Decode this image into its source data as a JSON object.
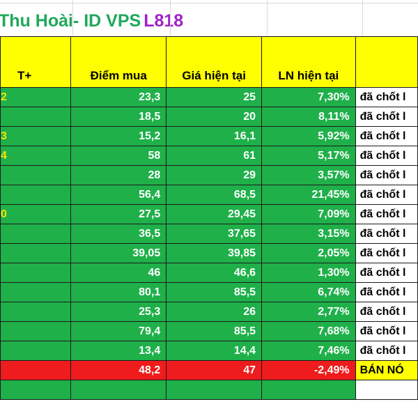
{
  "title": {
    "name": "Thu Hoài- ID VPS",
    "code": "L818"
  },
  "table": {
    "headers": [
      "T+",
      "Điểm mua",
      "Giá hiện tại",
      "LN hiện tại",
      ""
    ],
    "rows": [
      {
        "t": "2",
        "buy": "23,3",
        "price": "25",
        "pnl": "7,30%",
        "note": "đã chốt l"
      },
      {
        "t": "",
        "buy": "18,5",
        "price": "20",
        "pnl": "8,11%",
        "note": "đã chốt l"
      },
      {
        "t": "3",
        "buy": "15,2",
        "price": "16,1",
        "pnl": "5,92%",
        "note": "đã chốt l"
      },
      {
        "t": "4",
        "buy": "58",
        "price": "61",
        "pnl": "5,17%",
        "note": "đã chốt l"
      },
      {
        "t": "",
        "buy": "28",
        "price": "29",
        "pnl": "3,57%",
        "note": "đã chốt l"
      },
      {
        "t": "",
        "buy": "56,4",
        "price": "68,5",
        "pnl": "21,45%",
        "note": "đã chốt l"
      },
      {
        "t": "0",
        "buy": "27,5",
        "price": "29,45",
        "pnl": "7,09%",
        "note": "đã chốt l"
      },
      {
        "t": "",
        "buy": "36,5",
        "price": "37,65",
        "pnl": "3,15%",
        "note": "đã chốt l"
      },
      {
        "t": "",
        "buy": "39,05",
        "price": "39,85",
        "pnl": "2,05%",
        "note": "đã chốt l"
      },
      {
        "t": "",
        "buy": "46",
        "price": "46,6",
        "pnl": "1,30%",
        "note": "đã chốt l"
      },
      {
        "t": "",
        "buy": "80,1",
        "price": "85,5",
        "pnl": "6,74%",
        "note": "đã chốt l"
      },
      {
        "t": "",
        "buy": "25,3",
        "price": "26",
        "pnl": "2,77%",
        "note": "đã chốt l"
      },
      {
        "t": "",
        "buy": "79,4",
        "price": "85,5",
        "pnl": "7,68%",
        "note": "đã chốt l"
      },
      {
        "t": "",
        "buy": "13,4",
        "price": "14,4",
        "pnl": "7,46%",
        "note": "đã chốt l"
      },
      {
        "t": "",
        "buy": "48,2",
        "price": "47",
        "pnl": "-2,49%",
        "note": "BÁN NÓ",
        "status": "loss"
      }
    ]
  },
  "colors": {
    "profit_row": "#1fb04a",
    "loss_row": "#ee1c1c",
    "header": "#ffff00",
    "title": "#1fa85a",
    "code": "#a020c8"
  }
}
